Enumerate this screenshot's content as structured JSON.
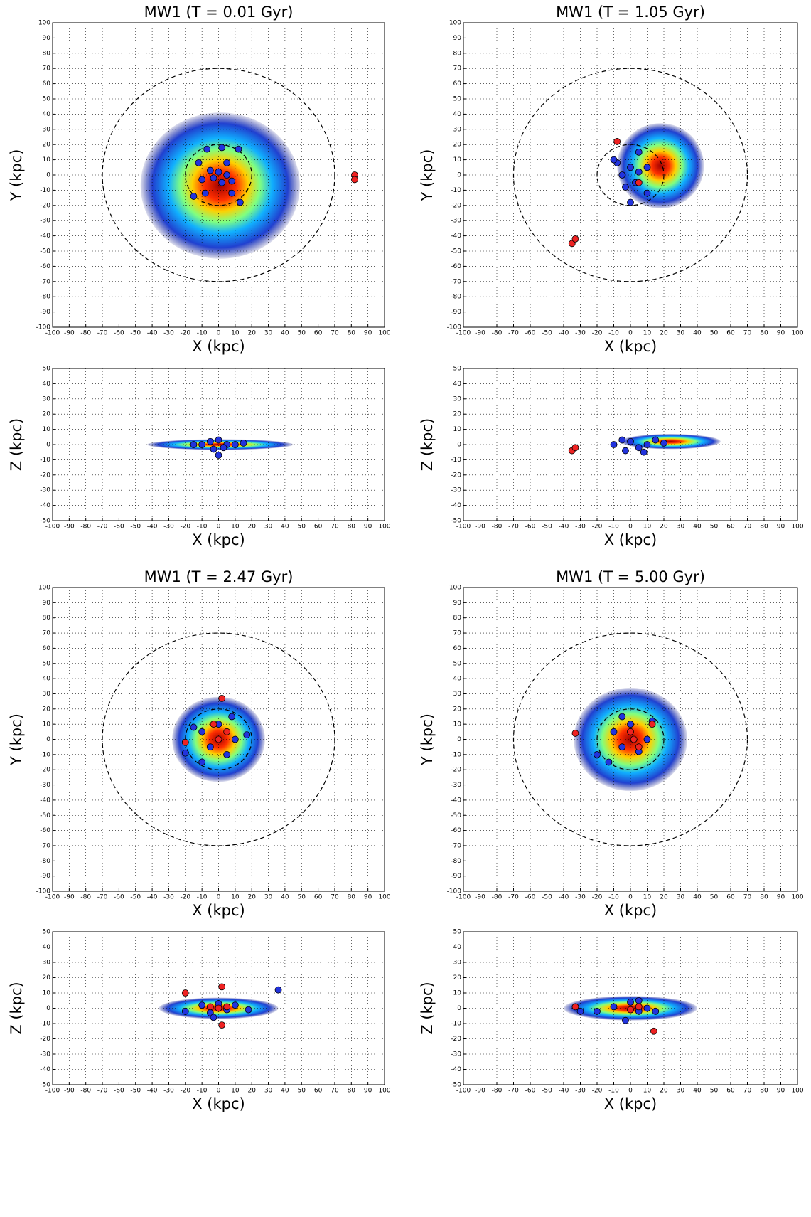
{
  "chart_data": [
    {
      "type": "scatter",
      "title": "MW1 (T = 0.01 Gyr)",
      "xlabel": "X (kpc)",
      "ylabel": "Y (kpc)",
      "xlim": [
        -100,
        100
      ],
      "ylim": [
        -100,
        100
      ],
      "xticks": [
        -100,
        -90,
        -80,
        -70,
        -60,
        -50,
        -40,
        -30,
        -20,
        -10,
        0,
        10,
        20,
        30,
        40,
        50,
        60,
        70,
        80,
        90,
        100
      ],
      "yticks": [
        -100,
        -90,
        -80,
        -70,
        -60,
        -50,
        -40,
        -30,
        -20,
        -10,
        0,
        10,
        20,
        30,
        40,
        50,
        60,
        70,
        80,
        90,
        100
      ],
      "grid": true,
      "circle_radii": [
        70,
        20
      ],
      "series": [
        {
          "color": "#2233dd",
          "x": [
            -7,
            2,
            12,
            -12,
            5,
            -5,
            0,
            5,
            -3,
            2,
            -8,
            8,
            -15,
            13,
            -10,
            8
          ],
          "values": [
            17,
            18,
            17,
            8,
            8,
            3,
            2,
            0,
            -2,
            -5,
            -12,
            -12,
            -14,
            -18,
            -3,
            -4
          ]
        },
        {
          "color": "#ee2222",
          "x": [
            82,
            82
          ],
          "values": [
            0,
            -3
          ]
        }
      ]
    },
    {
      "type": "scatter",
      "xlabel": "X (kpc)",
      "ylabel": "Z (kpc)",
      "xlim": [
        -100,
        100
      ],
      "ylim": [
        -50,
        50
      ],
      "xticks": [
        -100,
        -90,
        -80,
        -70,
        -60,
        -50,
        -40,
        -30,
        -20,
        -10,
        0,
        10,
        20,
        30,
        40,
        50,
        60,
        70,
        80,
        90,
        100
      ],
      "yticks": [
        -50,
        -40,
        -30,
        -20,
        -10,
        0,
        10,
        20,
        30,
        40,
        50
      ],
      "grid": true,
      "series": [
        {
          "color": "#2233dd",
          "x": [
            -10,
            -5,
            0,
            5,
            10,
            -3,
            3,
            -15,
            15,
            0
          ],
          "values": [
            0,
            2,
            3,
            0,
            0,
            -3,
            -2,
            0,
            1,
            -7
          ]
        }
      ]
    },
    {
      "type": "scatter",
      "title": "MW1 (T = 1.05 Gyr)",
      "xlabel": "X (kpc)",
      "ylabel": "Y (kpc)",
      "xlim": [
        -100,
        100
      ],
      "ylim": [
        -100,
        100
      ],
      "xticks": [
        -100,
        -90,
        -80,
        -70,
        -60,
        -50,
        -40,
        -30,
        -20,
        -10,
        0,
        10,
        20,
        30,
        40,
        50,
        60,
        70,
        80,
        90,
        100
      ],
      "yticks": [
        -100,
        -90,
        -80,
        -70,
        -60,
        -50,
        -40,
        -30,
        -20,
        -10,
        0,
        10,
        20,
        30,
        40,
        50,
        60,
        70,
        80,
        90,
        100
      ],
      "grid": true,
      "circle_radii": [
        70,
        20
      ],
      "series": [
        {
          "color": "#2233dd",
          "x": [
            0,
            5,
            -5,
            10,
            -8,
            3,
            -3,
            10,
            0,
            -10,
            5
          ],
          "values": [
            5,
            2,
            0,
            5,
            8,
            -5,
            -8,
            -12,
            -18,
            10,
            15
          ]
        },
        {
          "color": "#ee2222",
          "x": [
            -8,
            -35,
            -33,
            5
          ],
          "values": [
            22,
            -45,
            -42,
            -5
          ]
        }
      ]
    },
    {
      "type": "scatter",
      "xlabel": "X (kpc)",
      "ylabel": "Z (kpc)",
      "xlim": [
        -100,
        100
      ],
      "ylim": [
        -50,
        50
      ],
      "xticks": [
        -100,
        -90,
        -80,
        -70,
        -60,
        -50,
        -40,
        -30,
        -20,
        -10,
        0,
        10,
        20,
        30,
        40,
        50,
        60,
        70,
        80,
        90,
        100
      ],
      "yticks": [
        -50,
        -40,
        -30,
        -20,
        -10,
        0,
        10,
        20,
        30,
        40,
        50
      ],
      "grid": true,
      "series": [
        {
          "color": "#2233dd",
          "x": [
            -10,
            -5,
            0,
            5,
            10,
            15,
            -3,
            8,
            20
          ],
          "values": [
            0,
            3,
            2,
            -2,
            0,
            3,
            -4,
            -5,
            1
          ]
        },
        {
          "color": "#ee2222",
          "x": [
            -35,
            -33
          ],
          "values": [
            -4,
            -2
          ]
        }
      ]
    },
    {
      "type": "scatter",
      "title": "MW1 (T = 2.47 Gyr)",
      "xlabel": "X (kpc)",
      "ylabel": "Y (kpc)",
      "xlim": [
        -100,
        100
      ],
      "ylim": [
        -100,
        100
      ],
      "xticks": [
        -100,
        -90,
        -80,
        -70,
        -60,
        -50,
        -40,
        -30,
        -20,
        -10,
        0,
        10,
        20,
        30,
        40,
        50,
        60,
        70,
        80,
        90,
        100
      ],
      "yticks": [
        -100,
        -90,
        -80,
        -70,
        -60,
        -50,
        -40,
        -30,
        -20,
        -10,
        0,
        10,
        20,
        30,
        40,
        50,
        60,
        70,
        80,
        90,
        100
      ],
      "grid": true,
      "circle_radii": [
        70,
        20
      ],
      "series": [
        {
          "color": "#2233dd",
          "x": [
            -10,
            0,
            10,
            -5,
            5,
            17,
            -20,
            -10,
            -15,
            8
          ],
          "values": [
            5,
            10,
            0,
            -5,
            -10,
            3,
            -9,
            -15,
            8,
            15
          ]
        },
        {
          "color": "#ee2222",
          "x": [
            2,
            -20,
            0,
            5,
            -3
          ],
          "values": [
            27,
            -2,
            0,
            5,
            10
          ]
        }
      ]
    },
    {
      "type": "scatter",
      "xlabel": "X (kpc)",
      "ylabel": "Z (kpc)",
      "xlim": [
        -100,
        100
      ],
      "ylim": [
        -50,
        50
      ],
      "xticks": [
        -100,
        -90,
        -80,
        -70,
        -60,
        -50,
        -40,
        -30,
        -20,
        -10,
        0,
        10,
        20,
        30,
        40,
        50,
        60,
        70,
        80,
        90,
        100
      ],
      "yticks": [
        -50,
        -40,
        -30,
        -20,
        -10,
        0,
        10,
        20,
        30,
        40,
        50
      ],
      "grid": true,
      "series": [
        {
          "color": "#2233dd",
          "x": [
            -20,
            -10,
            -5,
            0,
            5,
            10,
            18,
            36,
            -3
          ],
          "values": [
            -2,
            2,
            -3,
            3,
            -1,
            2,
            -1,
            12,
            -6
          ]
        },
        {
          "color": "#ee2222",
          "x": [
            -20,
            2,
            2,
            0,
            5,
            -5
          ],
          "values": [
            10,
            14,
            -11,
            0,
            1,
            1
          ]
        }
      ]
    },
    {
      "type": "scatter",
      "title": "MW1 (T = 5.00 Gyr)",
      "xlabel": "X (kpc)",
      "ylabel": "Y (kpc)",
      "xlim": [
        -100,
        100
      ],
      "ylim": [
        -100,
        100
      ],
      "xticks": [
        -100,
        -90,
        -80,
        -70,
        -60,
        -50,
        -40,
        -30,
        -20,
        -10,
        0,
        10,
        20,
        30,
        40,
        50,
        60,
        70,
        80,
        90,
        100
      ],
      "yticks": [
        -100,
        -90,
        -80,
        -70,
        -60,
        -50,
        -40,
        -30,
        -20,
        -10,
        0,
        10,
        20,
        30,
        40,
        50,
        60,
        70,
        80,
        90,
        100
      ],
      "grid": true,
      "circle_radii": [
        70,
        20
      ],
      "series": [
        {
          "color": "#2233dd",
          "x": [
            -10,
            0,
            10,
            -5,
            5,
            13,
            -20,
            -13,
            -5
          ],
          "values": [
            5,
            10,
            0,
            -5,
            -8,
            12,
            -10,
            -15,
            15
          ]
        },
        {
          "color": "#ee2222",
          "x": [
            -33,
            13,
            2,
            5,
            0
          ],
          "values": [
            4,
            10,
            0,
            -5,
            5
          ]
        }
      ]
    },
    {
      "type": "scatter",
      "xlabel": "X (kpc)",
      "ylabel": "Z (kpc)",
      "xlim": [
        -100,
        100
      ],
      "ylim": [
        -50,
        50
      ],
      "xticks": [
        -100,
        -90,
        -80,
        -70,
        -60,
        -50,
        -40,
        -30,
        -20,
        -10,
        0,
        10,
        20,
        30,
        40,
        50,
        60,
        70,
        80,
        90,
        100
      ],
      "yticks": [
        -50,
        -40,
        -30,
        -20,
        -10,
        0,
        10,
        20,
        30,
        40,
        50
      ],
      "grid": true,
      "series": [
        {
          "color": "#2233dd",
          "x": [
            -30,
            -20,
            -10,
            0,
            5,
            10,
            15,
            -3,
            5
          ],
          "values": [
            -2,
            -2,
            1,
            4,
            -2,
            0,
            -2,
            -8,
            5
          ]
        },
        {
          "color": "#ee2222",
          "x": [
            -33,
            14,
            0,
            5
          ],
          "values": [
            1,
            -15,
            -1,
            1
          ]
        }
      ]
    }
  ]
}
